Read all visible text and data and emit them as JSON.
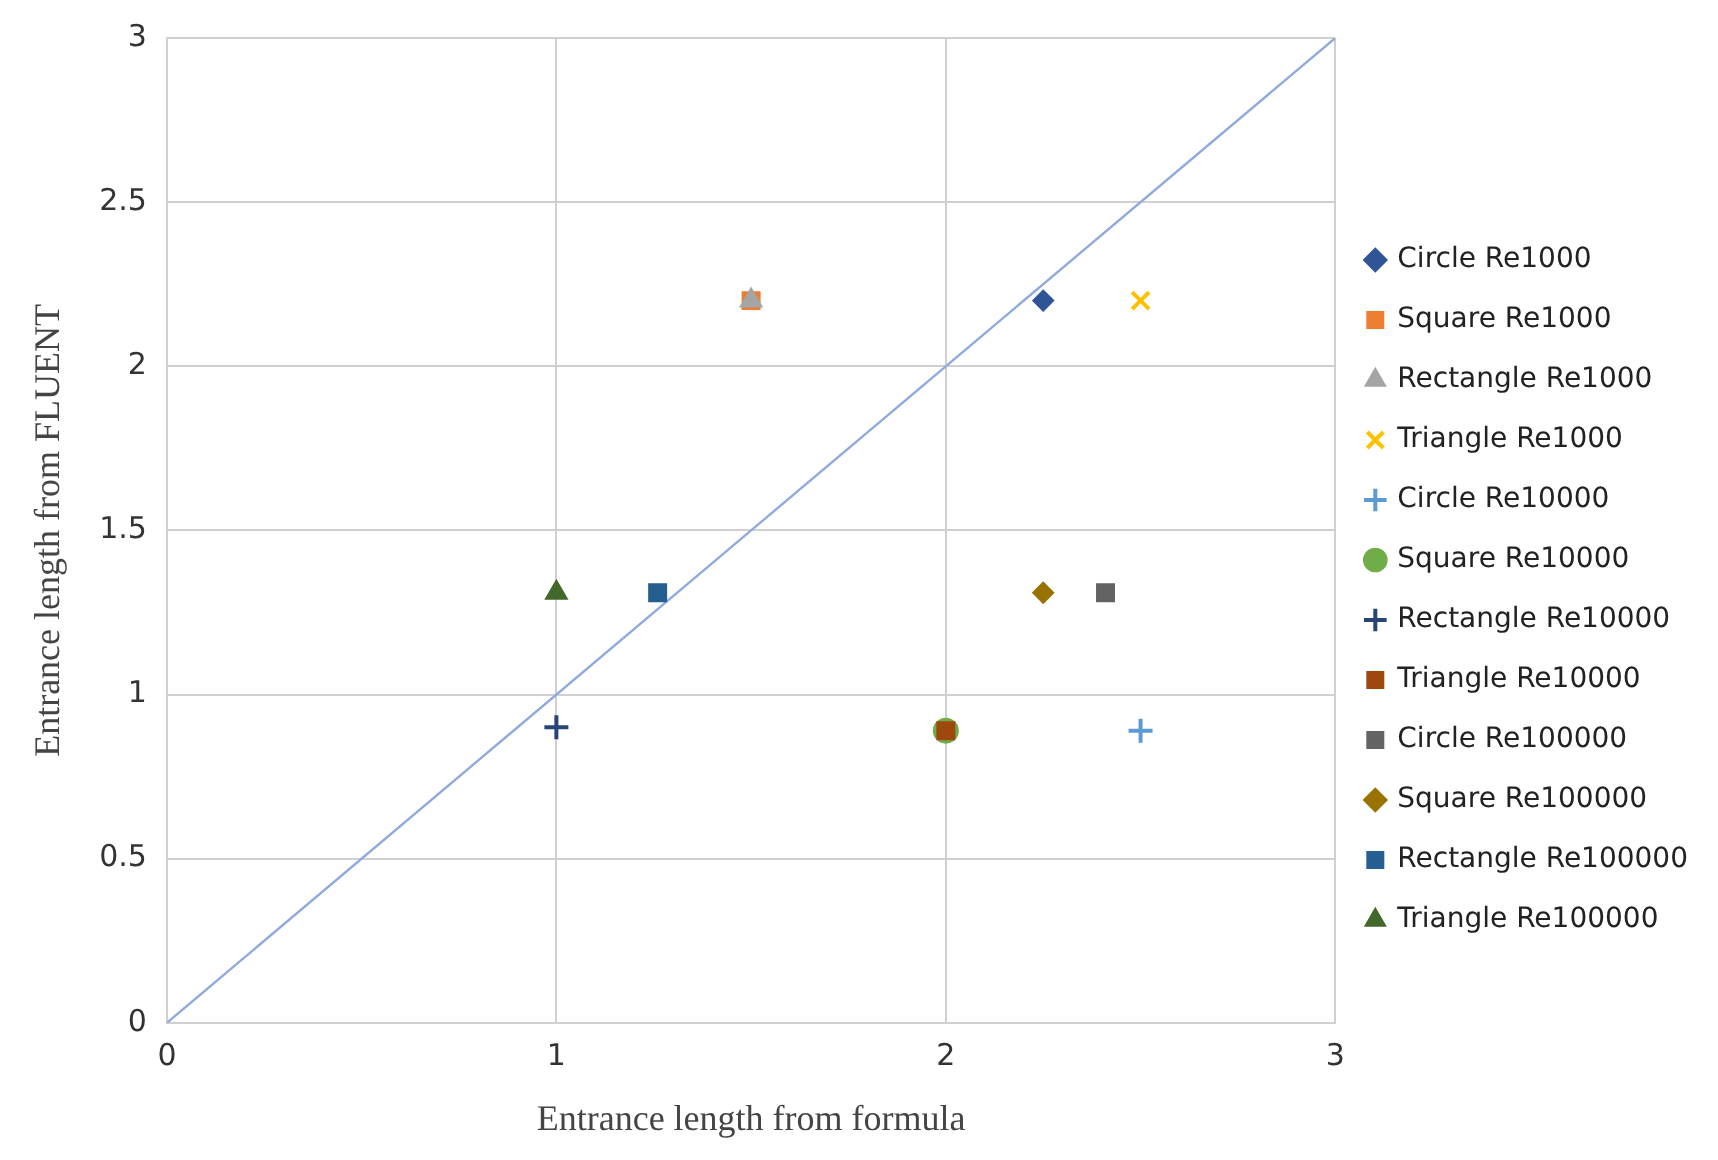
{
  "chart_data": {
    "type": "scatter",
    "xlabel": "Entrance length from formula",
    "ylabel": "Entrance length from FLUENT",
    "xlim": [
      0,
      3
    ],
    "xticks": [
      0,
      1,
      2,
      3
    ],
    "ylim": [
      0,
      3
    ],
    "yticks": [
      0,
      0.5,
      1,
      1.5,
      2,
      2.5,
      3
    ],
    "grid": true,
    "legend": "right",
    "series": [
      {
        "type": "line",
        "color": "#8faadc",
        "x": [
          0,
          3
        ],
        "values": [
          0,
          3
        ],
        "marker": "none",
        "line_style": "solid"
      },
      {
        "name": "Circle Re1000",
        "color": "#2f5597",
        "marker": "diamond",
        "x": [
          2.25
        ],
        "values": [
          2.2
        ]
      },
      {
        "name": "Square Re1000",
        "color": "#ed7d31",
        "marker": "square",
        "x": [
          1.5
        ],
        "values": [
          2.2
        ]
      },
      {
        "name": "Rectangle Re1000",
        "color": "#a5a5a5",
        "marker": "triangle",
        "x": [
          1.5
        ],
        "values": [
          2.2
        ]
      },
      {
        "name": "Triangle Re1000",
        "color": "#ffc000",
        "marker": "x",
        "x": [
          2.5
        ],
        "values": [
          2.2
        ]
      },
      {
        "name": "Circle Re10000",
        "color": "#5b9bd5",
        "marker": "cross",
        "x": [
          2.5
        ],
        "values": [
          0.89
        ]
      },
      {
        "name": "Square Re10000",
        "color": "#70ad47",
        "marker": "circle",
        "x": [
          2.0
        ],
        "values": [
          0.89
        ]
      },
      {
        "name": "Rectangle Re10000",
        "color": "#264478",
        "marker": "cross",
        "x": [
          1.0
        ],
        "values": [
          0.9
        ]
      },
      {
        "name": "Triangle Re10000",
        "color": "#9e480e",
        "marker": "square",
        "x": [
          2.0
        ],
        "values": [
          0.89
        ]
      },
      {
        "name": "Circle Re100000",
        "color": "#636363",
        "marker": "square",
        "x": [
          2.41
        ],
        "values": [
          1.31
        ]
      },
      {
        "name": "Square Re100000",
        "color": "#997300",
        "marker": "diamond",
        "x": [
          2.25
        ],
        "values": [
          1.31
        ]
      },
      {
        "name": "Rectangle Re100000",
        "color": "#255e91",
        "marker": "square",
        "x": [
          1.26
        ],
        "values": [
          1.31
        ]
      },
      {
        "name": "Triangle Re100000",
        "color": "#43682b",
        "marker": "triangle",
        "x": [
          1.0
        ],
        "values": [
          1.31
        ]
      }
    ]
  }
}
